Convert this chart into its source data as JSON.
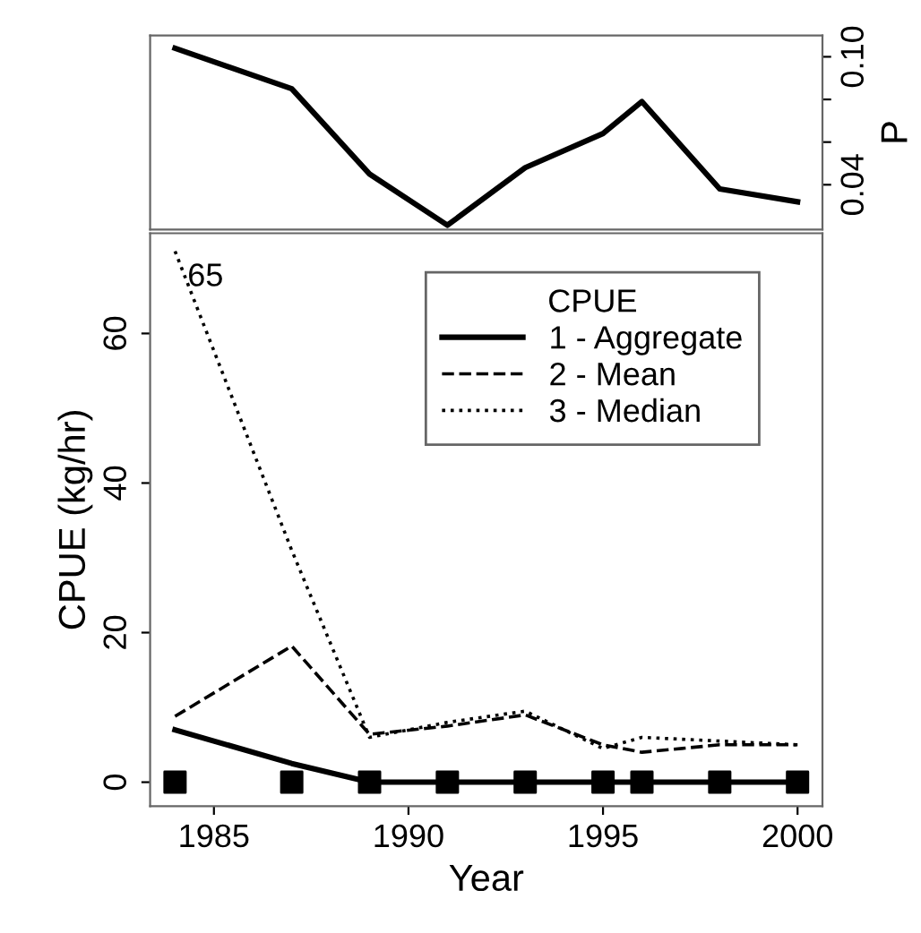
{
  "chart_data": [
    {
      "type": "line",
      "ylabel": "P",
      "x": [
        1984,
        1987,
        1989,
        1991,
        1993,
        1995,
        1996,
        1998,
        2000
      ],
      "xlim": [
        1983.36,
        2000.64
      ],
      "ylim": [
        0.019,
        0.11
      ],
      "yticks": [
        {
          "value": 0.04,
          "label": "0.04"
        },
        {
          "value": 0.06,
          "label": null
        },
        {
          "value": 0.08,
          "label": null
        },
        {
          "value": 0.1,
          "label": "0.10"
        }
      ],
      "tick_labels": "y",
      "grid": false,
      "legend": false,
      "series": [
        {
          "color": "#000000",
          "line_style": "solid",
          "values": [
            0.104,
            0.085,
            0.045,
            0.021,
            0.048,
            0.064,
            0.079,
            0.038,
            0.032
          ]
        }
      ]
    },
    {
      "type": "line",
      "xlabel": "Year",
      "ylabel": "CPUE (kg/hr)",
      "legend_title": "CPUE",
      "legend": "top right",
      "grid": false,
      "x": [
        1984,
        1987,
        1989,
        1991,
        1993,
        1995,
        1996,
        1998,
        2000
      ],
      "xlim": [
        1983.36,
        2000.64
      ],
      "ylim": [
        -3.2,
        73.4
      ],
      "xticks": [
        1985,
        1990,
        1995,
        2000
      ],
      "yticks": [
        0,
        20,
        40,
        60
      ],
      "annotations": [
        {
          "text": "65",
          "x": 1984,
          "y": 71
        }
      ],
      "series": [
        {
          "name": "1 - Aggregate",
          "color": "#000000",
          "line_style": "solid",
          "values": [
            7,
            2.5,
            0,
            0,
            0,
            0,
            0,
            0,
            0
          ]
        },
        {
          "name": "2 - Mean",
          "color": "#000000",
          "line_style": "dashed",
          "values": [
            8.8,
            18.2,
            6.4,
            7.5,
            9,
            5,
            4,
            5,
            5
          ]
        },
        {
          "name": "3 - Median",
          "color": "#000000",
          "line_style": "dotted",
          "values": [
            71,
            31,
            6,
            8,
            9.5,
            4.5,
            6,
            5.5,
            5
          ]
        },
        {
          "type": "scatter",
          "marker": "square",
          "color": "#000000",
          "values": [
            0,
            0,
            0,
            0,
            0,
            0,
            0,
            0,
            0
          ]
        }
      ]
    }
  ]
}
